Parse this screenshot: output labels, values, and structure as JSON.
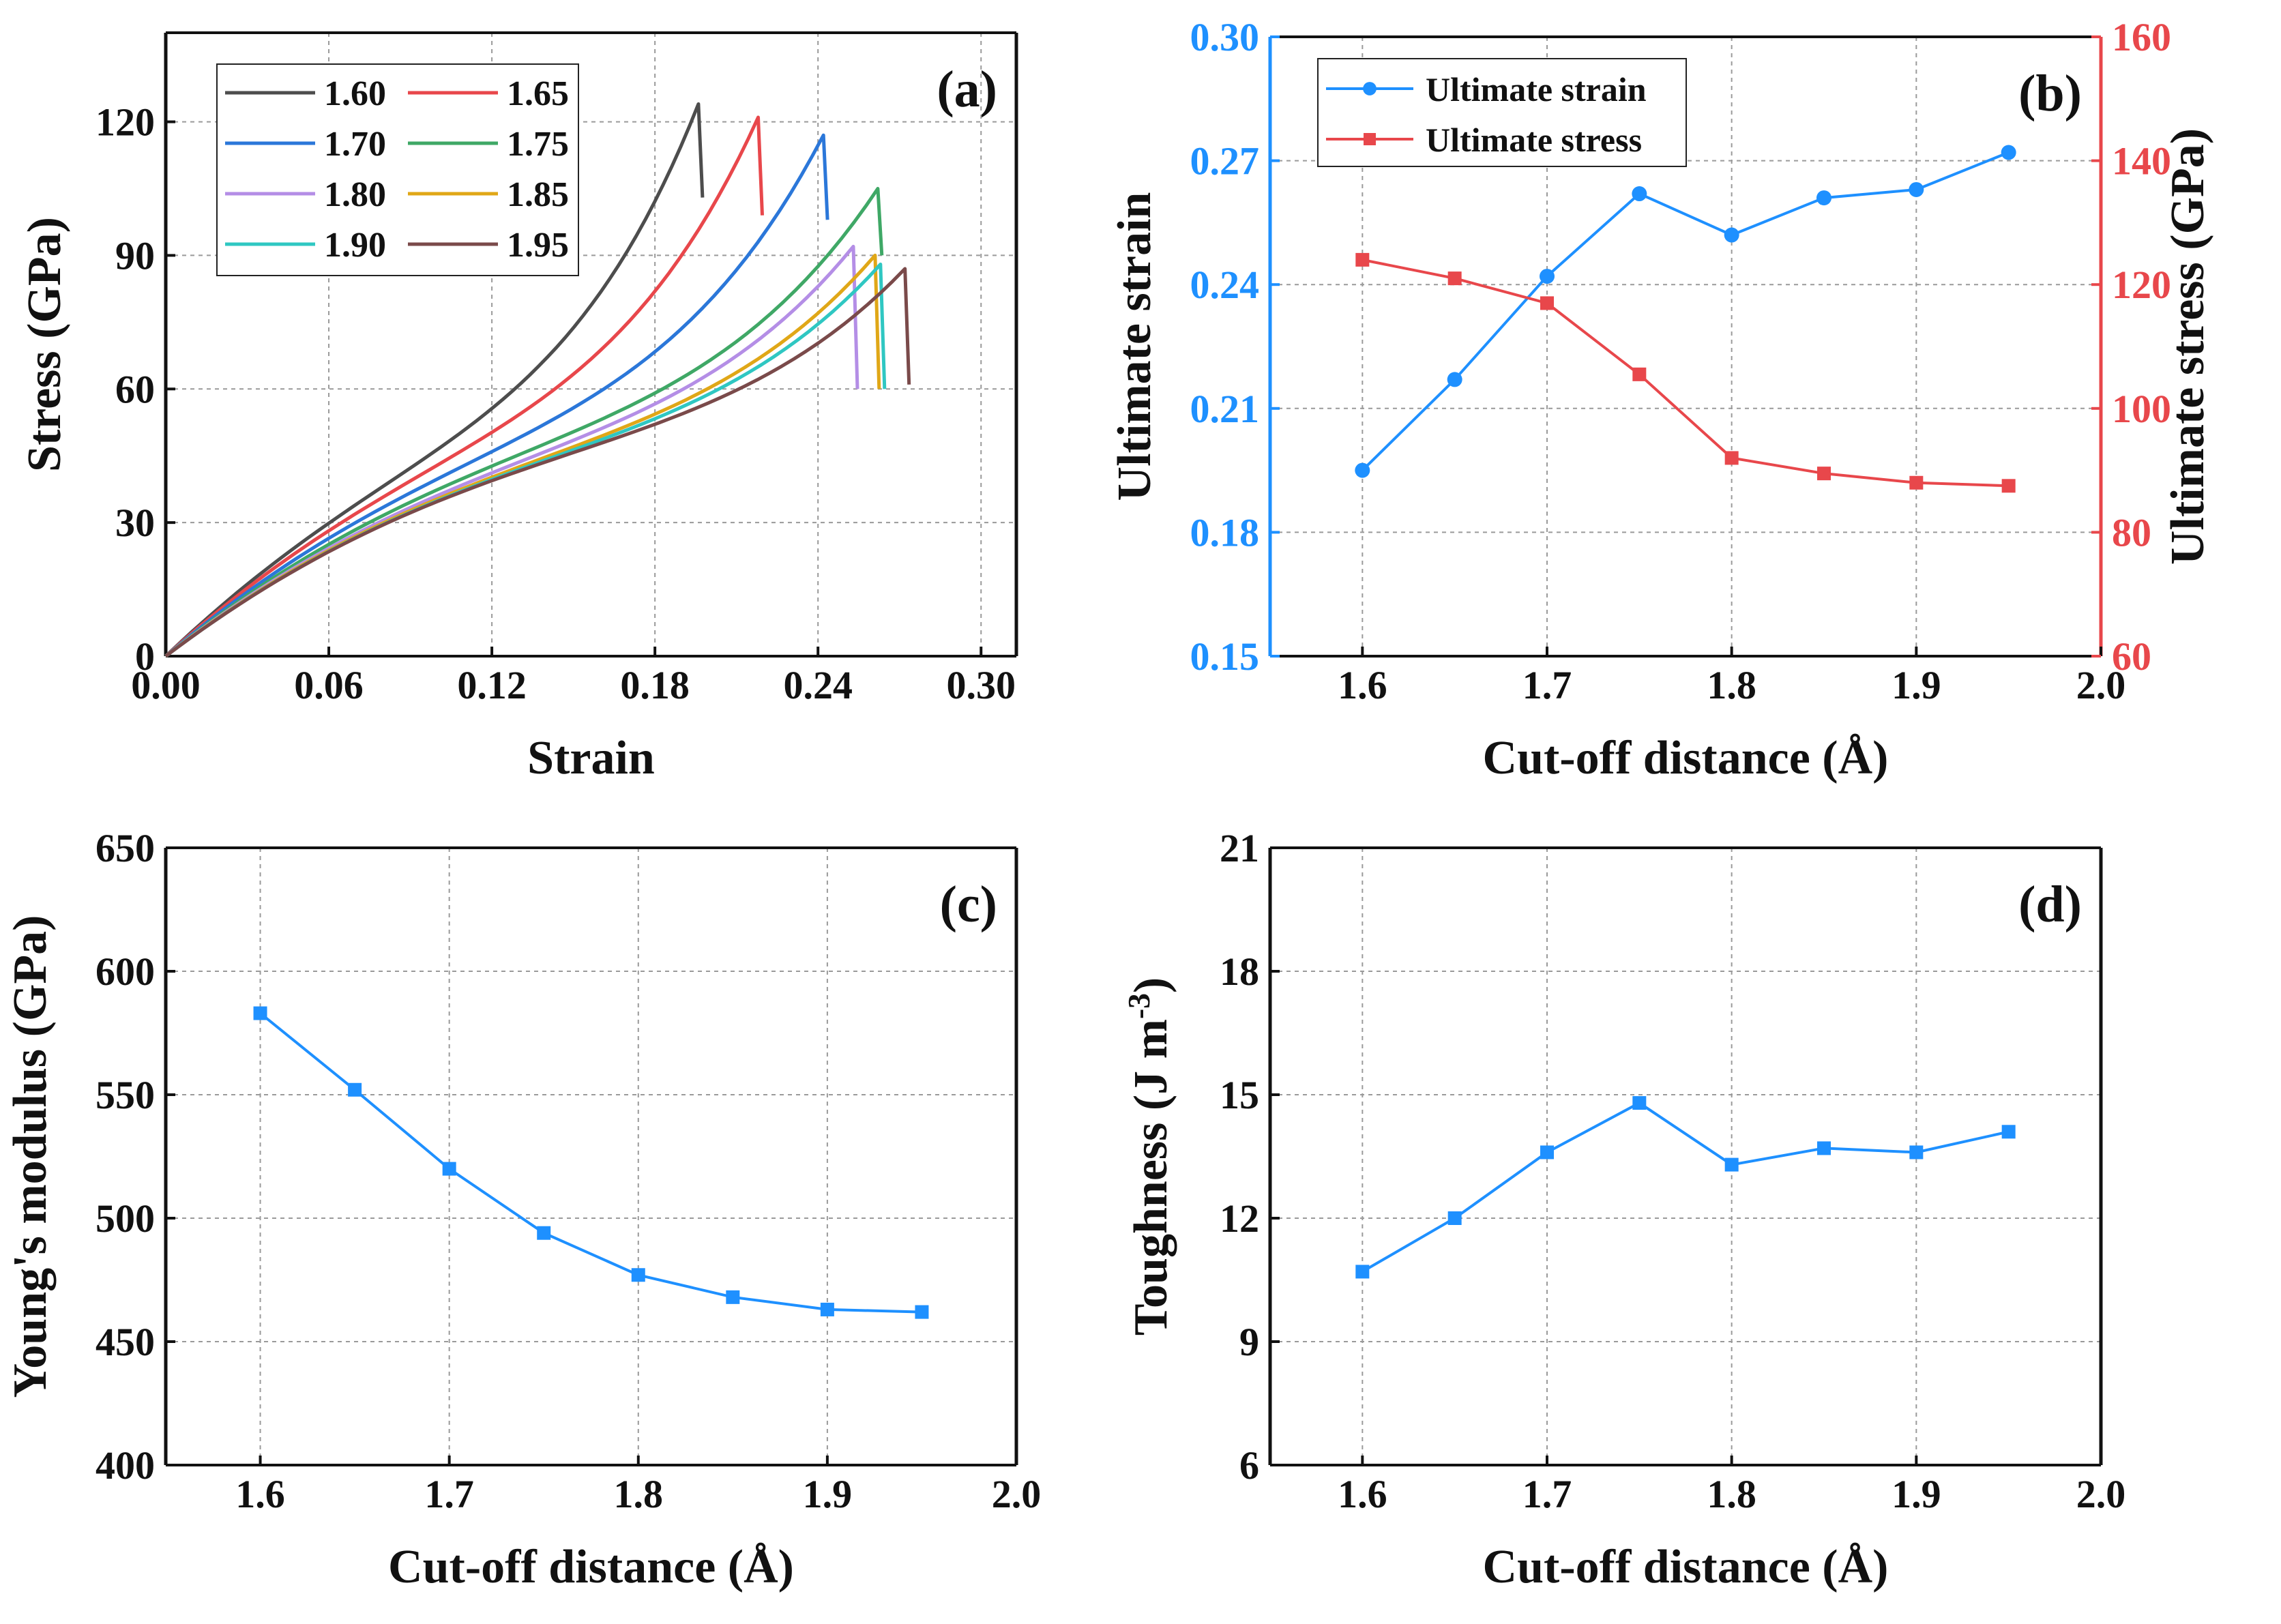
{
  "chart_data": [
    {
      "id": "a",
      "type": "line",
      "panel_label": "(a)",
      "xlabel": "Strain",
      "ylabel": "Stress (GPa)",
      "xlim": [
        0,
        0.3
      ],
      "ylim": [
        0,
        140
      ],
      "xticks": [
        0,
        0.06,
        0.12,
        0.18,
        0.24,
        0.3
      ],
      "xtick_labels": [
        "0.00",
        "0.06",
        "0.12",
        "0.18",
        "0.24",
        "0.30"
      ],
      "yticks": [
        0,
        30,
        60,
        90,
        120
      ],
      "ytick_labels": [
        "0",
        "30",
        "60",
        "90",
        "120"
      ],
      "grid": true,
      "legend_position": "top-left",
      "series": [
        {
          "name": "1.60",
          "color": "#4d4d4d",
          "modulus": 583,
          "peak_strain": 0.196,
          "peak_stress": 124,
          "drop_stress": 103
        },
        {
          "name": "1.65",
          "color": "#e8474b",
          "modulus": 552,
          "peak_strain": 0.218,
          "peak_stress": 121,
          "drop_stress": 99
        },
        {
          "name": "1.70",
          "color": "#2b77d9",
          "modulus": 520,
          "peak_strain": 0.242,
          "peak_stress": 117,
          "drop_stress": 98
        },
        {
          "name": "1.75",
          "color": "#3fa866",
          "modulus": 494,
          "peak_strain": 0.262,
          "peak_stress": 105,
          "drop_stress": 90
        },
        {
          "name": "1.80",
          "color": "#b48ee6",
          "modulus": 477,
          "peak_strain": 0.253,
          "peak_stress": 92,
          "drop_stress": 60
        },
        {
          "name": "1.85",
          "color": "#e0a717",
          "modulus": 468,
          "peak_strain": 0.261,
          "peak_stress": 90,
          "drop_stress": 60
        },
        {
          "name": "1.90",
          "color": "#2fc7c2",
          "modulus": 463,
          "peak_strain": 0.263,
          "peak_stress": 88,
          "drop_stress": 60
        },
        {
          "name": "1.95",
          "color": "#7a4a4a",
          "modulus": 462,
          "peak_strain": 0.272,
          "peak_stress": 87,
          "drop_stress": 61
        }
      ]
    },
    {
      "id": "b",
      "type": "line",
      "panel_label": "(b)",
      "xlabel": "Cut-off distance (Å)",
      "ylabel": "Ultimate strain",
      "ylabel_right": "Ultimate stress (GPa)",
      "xlim": [
        1.55,
        2.0
      ],
      "ylim": [
        0.15,
        0.3
      ],
      "ylim_right": [
        60,
        160
      ],
      "xticks": [
        1.6,
        1.7,
        1.8,
        1.9,
        2.0
      ],
      "xtick_labels": [
        "1.6",
        "1.7",
        "1.8",
        "1.9",
        "2.0"
      ],
      "yticks": [
        0.15,
        0.18,
        0.21,
        0.24,
        0.27,
        0.3
      ],
      "ytick_labels": [
        "0.15",
        "0.18",
        "0.21",
        "0.24",
        "0.27",
        "0.30"
      ],
      "yticks_right": [
        60,
        80,
        100,
        120,
        140,
        160
      ],
      "ytick_labels_right": [
        "60",
        "80",
        "100",
        "120",
        "140",
        "160"
      ],
      "grid": true,
      "legend_position": "top-left",
      "left_axis_color": "#1e90ff",
      "right_axis_color": "#e8474b",
      "x": [
        1.6,
        1.65,
        1.7,
        1.75,
        1.8,
        1.85,
        1.9,
        1.95
      ],
      "series": [
        {
          "name": "Ultimate strain",
          "axis": "left",
          "marker": "circle",
          "color": "#1e90ff",
          "values": [
            0.195,
            0.217,
            0.242,
            0.262,
            0.252,
            0.261,
            0.263,
            0.272
          ]
        },
        {
          "name": "Ultimate stress",
          "axis": "right",
          "marker": "square",
          "color": "#e8474b",
          "values": [
            124,
            121,
            117,
            105.5,
            92,
            89.5,
            88,
            87.5
          ]
        }
      ]
    },
    {
      "id": "c",
      "type": "line",
      "panel_label": "(c)",
      "xlabel": "Cut-off distance (Å)",
      "ylabel": "Young's modulus (GPa)",
      "xlim": [
        1.55,
        2.0
      ],
      "ylim": [
        400,
        650
      ],
      "xticks": [
        1.6,
        1.7,
        1.8,
        1.9,
        2.0
      ],
      "xtick_labels": [
        "1.6",
        "1.7",
        "1.8",
        "1.9",
        "2.0"
      ],
      "yticks": [
        400,
        450,
        500,
        550,
        600,
        650
      ],
      "ytick_labels": [
        "400",
        "450",
        "500",
        "550",
        "600",
        "650"
      ],
      "grid": true,
      "x": [
        1.6,
        1.65,
        1.7,
        1.75,
        1.8,
        1.85,
        1.9,
        1.95
      ],
      "series": [
        {
          "name": "Young's modulus",
          "marker": "square",
          "color": "#1e90ff",
          "values": [
            583,
            552,
            520,
            494,
            477,
            468,
            463,
            462
          ]
        }
      ]
    },
    {
      "id": "d",
      "type": "line",
      "panel_label": "(d)",
      "xlabel": "Cut-off distance (Å)",
      "ylabel": "Toughness (J m",
      "ylabel_sup": "-3",
      "ylabel_end": ")",
      "xlim": [
        1.55,
        2.0
      ],
      "ylim": [
        6,
        21
      ],
      "xticks": [
        1.6,
        1.7,
        1.8,
        1.9,
        2.0
      ],
      "xtick_labels": [
        "1.6",
        "1.7",
        "1.8",
        "1.9",
        "2.0"
      ],
      "yticks": [
        6,
        9,
        12,
        15,
        18,
        21
      ],
      "ytick_labels": [
        "6",
        "9",
        "12",
        "15",
        "18",
        "21"
      ],
      "grid": true,
      "x": [
        1.6,
        1.65,
        1.7,
        1.75,
        1.8,
        1.85,
        1.9,
        1.95
      ],
      "series": [
        {
          "name": "Toughness",
          "marker": "square",
          "color": "#1e90ff",
          "values": [
            10.7,
            12.0,
            13.6,
            14.8,
            13.3,
            13.7,
            13.6,
            14.1
          ]
        }
      ]
    }
  ]
}
